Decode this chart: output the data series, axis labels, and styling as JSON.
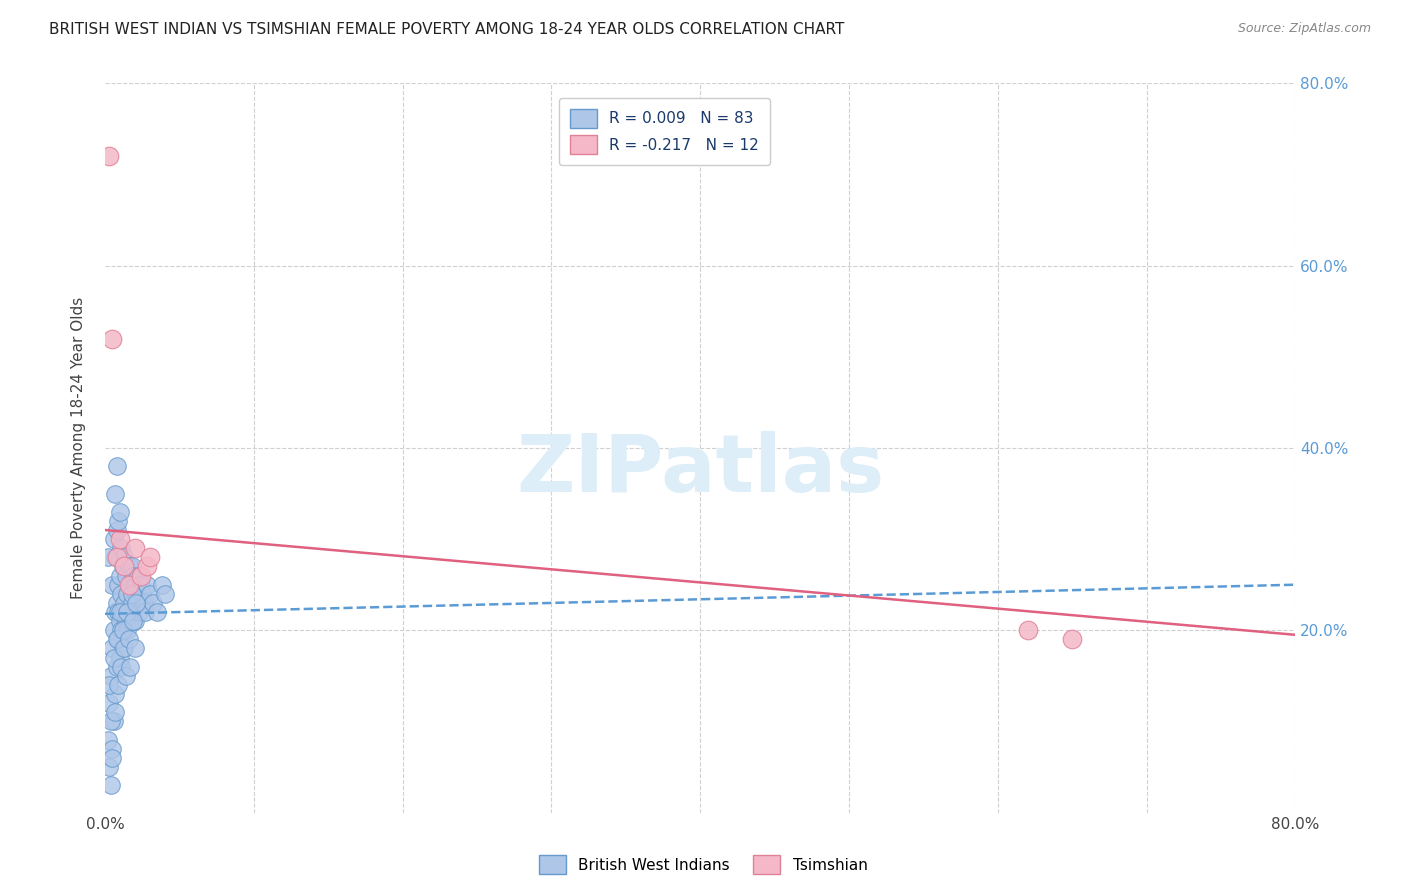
{
  "title": "BRITISH WEST INDIAN VS TSIMSHIAN FEMALE POVERTY AMONG 18-24 YEAR OLDS CORRELATION CHART",
  "source": "Source: ZipAtlas.com",
  "ylabel": "Female Poverty Among 18-24 Year Olds",
  "xlim": [
    0.0,
    0.8
  ],
  "ylim": [
    0.0,
    0.8
  ],
  "bg_color": "#ffffff",
  "grid_color": "#d0d0d0",
  "series1_color": "#aec6e8",
  "series1_edge": "#6699cc",
  "series2_color": "#f4b8c8",
  "series2_edge": "#e08098",
  "series1_label": "British West Indians",
  "series2_label": "Tsimshian",
  "series1_R": 0.009,
  "series1_N": 83,
  "series2_R": -0.217,
  "series2_N": 12,
  "line1_color": "#5b9bd5",
  "line2_color": "#e06080",
  "watermark_color": "#ddeef8",
  "blue_line_x0": 0.0,
  "blue_line_y0": 0.218,
  "blue_line_x1": 0.8,
  "blue_line_y1": 0.25,
  "pink_line_x0": 0.0,
  "pink_line_y0": 0.31,
  "pink_line_x1": 0.8,
  "pink_line_y1": 0.195,
  "blue_x": [
    0.002,
    0.003,
    0.003,
    0.004,
    0.004,
    0.005,
    0.005,
    0.005,
    0.006,
    0.006,
    0.006,
    0.007,
    0.007,
    0.007,
    0.007,
    0.008,
    0.008,
    0.008,
    0.008,
    0.009,
    0.009,
    0.009,
    0.009,
    0.01,
    0.01,
    0.01,
    0.01,
    0.011,
    0.011,
    0.011,
    0.012,
    0.012,
    0.012,
    0.013,
    0.013,
    0.014,
    0.014,
    0.015,
    0.015,
    0.016,
    0.016,
    0.017,
    0.017,
    0.018,
    0.018,
    0.019,
    0.019,
    0.02,
    0.02,
    0.021,
    0.022,
    0.022,
    0.023,
    0.024,
    0.025,
    0.026,
    0.027,
    0.028,
    0.03,
    0.032,
    0.035,
    0.038,
    0.04,
    0.002,
    0.003,
    0.004,
    0.005,
    0.006,
    0.007,
    0.008,
    0.009,
    0.01,
    0.011,
    0.012,
    0.013,
    0.014,
    0.015,
    0.016,
    0.017,
    0.018,
    0.019,
    0.02,
    0.021
  ],
  "blue_y": [
    0.08,
    0.05,
    0.12,
    0.03,
    0.15,
    0.07,
    0.18,
    0.25,
    0.1,
    0.2,
    0.3,
    0.13,
    0.22,
    0.28,
    0.35,
    0.16,
    0.23,
    0.31,
    0.38,
    0.19,
    0.25,
    0.32,
    0.22,
    0.21,
    0.26,
    0.33,
    0.17,
    0.24,
    0.29,
    0.2,
    0.22,
    0.27,
    0.18,
    0.23,
    0.28,
    0.21,
    0.26,
    0.2,
    0.24,
    0.22,
    0.27,
    0.21,
    0.25,
    0.23,
    0.27,
    0.22,
    0.26,
    0.21,
    0.25,
    0.24,
    0.23,
    0.26,
    0.22,
    0.25,
    0.24,
    0.23,
    0.22,
    0.25,
    0.24,
    0.23,
    0.22,
    0.25,
    0.24,
    0.28,
    0.14,
    0.1,
    0.06,
    0.17,
    0.11,
    0.19,
    0.14,
    0.22,
    0.16,
    0.2,
    0.18,
    0.15,
    0.22,
    0.19,
    0.16,
    0.24,
    0.21,
    0.18,
    0.23
  ],
  "pink_x": [
    0.003,
    0.005,
    0.008,
    0.01,
    0.013,
    0.016,
    0.02,
    0.024,
    0.028,
    0.03,
    0.62,
    0.65
  ],
  "pink_y": [
    0.72,
    0.52,
    0.28,
    0.3,
    0.27,
    0.25,
    0.29,
    0.26,
    0.27,
    0.28,
    0.2,
    0.19
  ]
}
